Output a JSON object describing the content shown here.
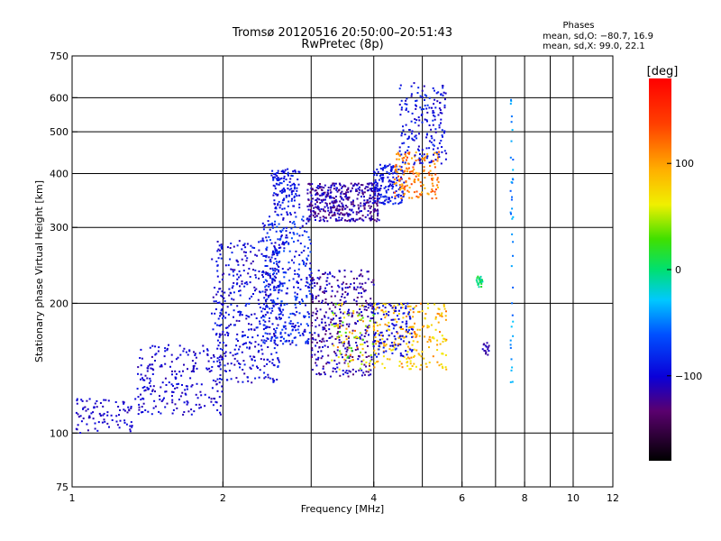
{
  "title": "Tromsø 20120516 20:50:00–20:51:43",
  "subtitle": "RwPretec (8p)",
  "phases_box": {
    "heading": "Phases",
    "line1": "mean, sd,O: −80.7, 16.9",
    "line2": "mean, sd,X:  99.0, 22.1"
  },
  "colorbar": {
    "unit": "[deg]",
    "range": [
      -180,
      180
    ],
    "ticks": [
      100,
      0,
      -100
    ],
    "tick_labels": [
      "100",
      "0",
      "−100"
    ]
  },
  "chart_data": {
    "type": "scatter",
    "title": "Tromsø 20120516 20:50:00–20:51:43",
    "subtitle": "RwPretec (8p)",
    "xlabel": "Frequency [MHz]",
    "ylabel": "Stationary phase Virtual Height [km]",
    "x_scale": "log",
    "y_scale": "log",
    "xlim": [
      1,
      12
    ],
    "ylim": [
      75,
      750
    ],
    "x_ticks": [
      1,
      2,
      4,
      6,
      8,
      10,
      12
    ],
    "y_ticks": [
      75,
      100,
      200,
      300,
      400,
      500,
      600,
      750
    ],
    "x_gridlines": [
      2,
      3,
      4,
      5,
      6,
      7,
      8,
      9,
      10
    ],
    "y_gridlines": [
      100,
      200,
      300,
      400,
      500,
      600
    ],
    "grid": true,
    "color_variable": "phase (deg)",
    "clusters": [
      {
        "f": [
          1.02,
          1.35
        ],
        "h": [
          100,
          120
        ],
        "phase": [
          -115,
          -95
        ],
        "n": 90
      },
      {
        "f": [
          1.35,
          2.0
        ],
        "h": [
          110,
          160
        ],
        "phase": [
          -115,
          -90
        ],
        "n": 230
      },
      {
        "f": [
          1.9,
          2.6
        ],
        "h": [
          130,
          280
        ],
        "phase": [
          -115,
          -80
        ],
        "n": 420
      },
      {
        "f": [
          2.4,
          3.0
        ],
        "h": [
          160,
          320
        ],
        "phase": [
          -110,
          -60
        ],
        "n": 380
      },
      {
        "f": [
          2.5,
          2.85
        ],
        "h": [
          320,
          410
        ],
        "phase": [
          -110,
          -75
        ],
        "n": 130
      },
      {
        "f": [
          2.95,
          4.1
        ],
        "h": [
          310,
          380
        ],
        "phase": [
          -135,
          -95
        ],
        "n": 420
      },
      {
        "f": [
          3.0,
          4.0
        ],
        "h": [
          135,
          240
        ],
        "phase": [
          -135,
          -95
        ],
        "n": 380
      },
      {
        "f": [
          3.3,
          4.0
        ],
        "h": [
          140,
          200
        ],
        "phase": [
          20,
          120
        ],
        "n": 90
      },
      {
        "f": [
          4.0,
          4.6
        ],
        "h": [
          340,
          420
        ],
        "phase": [
          -105,
          -80
        ],
        "n": 150
      },
      {
        "f": [
          4.4,
          5.4
        ],
        "h": [
          350,
          450
        ],
        "phase": [
          90,
          140
        ],
        "n": 160
      },
      {
        "f": [
          4.5,
          5.6
        ],
        "h": [
          420,
          650
        ],
        "phase": [
          -110,
          -75
        ],
        "n": 180
      },
      {
        "f": [
          4.0,
          5.6
        ],
        "h": [
          140,
          200
        ],
        "phase": [
          60,
          120
        ],
        "n": 230
      },
      {
        "f": [
          4.0,
          4.8
        ],
        "h": [
          150,
          200
        ],
        "phase": [
          -110,
          -80
        ],
        "n": 120
      },
      {
        "f": [
          6.4,
          6.6
        ],
        "h": [
          218,
          232
        ],
        "phase": [
          -20,
          20
        ],
        "n": 25
      },
      {
        "f": [
          6.6,
          6.8
        ],
        "h": [
          150,
          162
        ],
        "phase": [
          -130,
          -100
        ],
        "n": 15
      },
      {
        "f": [
          7.5,
          7.6
        ],
        "h": [
          130,
          600
        ],
        "phase": [
          -60,
          -30
        ],
        "n": 40
      }
    ]
  }
}
